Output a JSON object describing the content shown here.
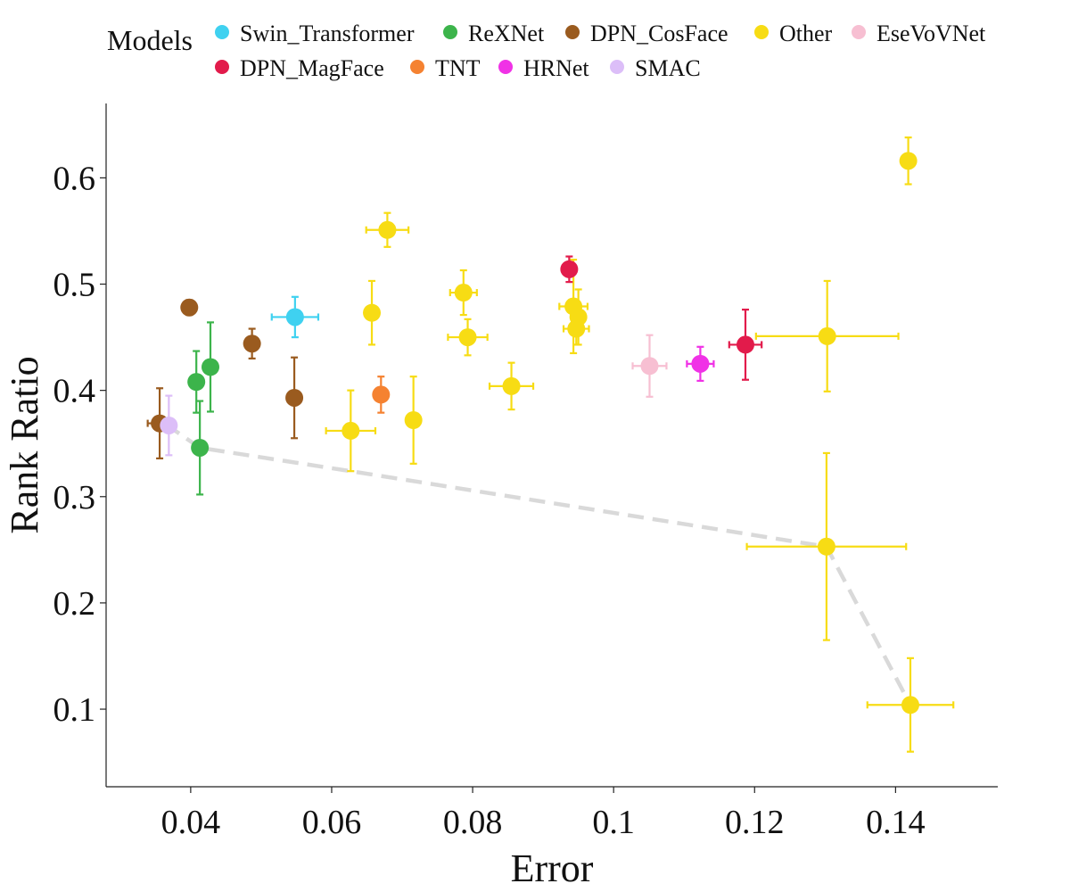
{
  "chart_data": {
    "type": "scatter",
    "xlabel": "Error",
    "ylabel": "Rank Ratio",
    "xlim": [
      0.028,
      0.1545
    ],
    "ylim": [
      0.027,
      0.67
    ],
    "x_ticks": [
      0.04,
      0.06,
      0.08,
      0.1,
      0.12,
      0.14
    ],
    "x_tick_labels": [
      "0.04",
      "0.06",
      "0.08",
      "0.1",
      "0.12",
      "0.14"
    ],
    "y_ticks": [
      0.1,
      0.2,
      0.3,
      0.4,
      0.5,
      0.6
    ],
    "y_tick_labels": [
      "0.1",
      "0.2",
      "0.3",
      "0.4",
      "0.5",
      "0.6"
    ],
    "grid": false,
    "legend": {
      "title": "Models",
      "placement": "top",
      "rows": [
        [
          "Swin_Transformer",
          "ReXNet",
          "DPN_CosFace",
          "Other",
          "EseVoVNet"
        ],
        [
          "DPN_MagFace",
          "TNT",
          "HRNet",
          "SMAC"
        ]
      ]
    },
    "frontier": {
      "style": "dashed",
      "color": "#d9d9d9",
      "points": [
        [
          0.0365,
          0.368
        ],
        [
          0.0413,
          0.346
        ],
        [
          0.0627,
          0.324
        ],
        [
          0.1302,
          0.253
        ],
        [
          0.1421,
          0.104
        ]
      ]
    },
    "series": [
      {
        "name": "Swin_Transformer",
        "color": "#3fd1f0",
        "points": [
          {
            "x": 0.0548,
            "y": 0.469,
            "xerr": 0.0033,
            "yerr": 0.019
          }
        ]
      },
      {
        "name": "ReXNet",
        "color": "#3cb44b",
        "points": [
          {
            "x": 0.0408,
            "y": 0.408,
            "xerr": 0.0003,
            "yerr": 0.029
          },
          {
            "x": 0.0428,
            "y": 0.422,
            "xerr": 0.0003,
            "yerr": 0.042
          },
          {
            "x": 0.0413,
            "y": 0.346,
            "xerr": 0.0003,
            "yerr": 0.044
          }
        ]
      },
      {
        "name": "DPN_CosFace",
        "color": "#9a5b1f",
        "points": [
          {
            "x": 0.0398,
            "y": 0.478,
            "xerr": 0.0003,
            "yerr": 0.007
          },
          {
            "x": 0.0487,
            "y": 0.444,
            "xerr": 0.0003,
            "yerr": 0.014
          },
          {
            "x": 0.0547,
            "y": 0.393,
            "xerr": 0.0003,
            "yerr": 0.038
          },
          {
            "x": 0.0356,
            "y": 0.369,
            "xerr": 0.0017,
            "yerr": 0.033
          }
        ]
      },
      {
        "name": "Other",
        "color": "#f7dc14",
        "points": [
          {
            "x": 0.1418,
            "y": 0.616,
            "xerr": 0.0003,
            "yerr": 0.022
          },
          {
            "x": 0.0679,
            "y": 0.551,
            "xerr": 0.003,
            "yerr": 0.016
          },
          {
            "x": 0.0787,
            "y": 0.492,
            "xerr": 0.0019,
            "yerr": 0.021
          },
          {
            "x": 0.0657,
            "y": 0.473,
            "xerr": 0.0003,
            "yerr": 0.03
          },
          {
            "x": 0.0943,
            "y": 0.479,
            "xerr": 0.002,
            "yerr": 0.044
          },
          {
            "x": 0.095,
            "y": 0.469,
            "xerr": 0.0003,
            "yerr": 0.026
          },
          {
            "x": 0.0947,
            "y": 0.458,
            "xerr": 0.0018,
            "yerr": 0.015
          },
          {
            "x": 0.0793,
            "y": 0.45,
            "xerr": 0.0028,
            "yerr": 0.017
          },
          {
            "x": 0.0855,
            "y": 0.404,
            "xerr": 0.0031,
            "yerr": 0.022
          },
          {
            "x": 0.1303,
            "y": 0.451,
            "xerr": 0.0101,
            "yerr": 0.052
          },
          {
            "x": 0.0627,
            "y": 0.362,
            "xerr": 0.0035,
            "yerr": 0.038
          },
          {
            "x": 0.0716,
            "y": 0.372,
            "xerr": 0.0003,
            "yerr": 0.041
          },
          {
            "x": 0.1302,
            "y": 0.253,
            "xerr": 0.0113,
            "yerr": 0.088
          },
          {
            "x": 0.1421,
            "y": 0.104,
            "xerr": 0.0061,
            "yerr": 0.044
          }
        ]
      },
      {
        "name": "EseVoVNet",
        "color": "#f7bfd2",
        "points": [
          {
            "x": 0.1051,
            "y": 0.423,
            "xerr": 0.0024,
            "yerr": 0.029
          }
        ]
      },
      {
        "name": "DPN_MagFace",
        "color": "#e21b4b",
        "points": [
          {
            "x": 0.0937,
            "y": 0.514,
            "xerr": 0.0003,
            "yerr": 0.012
          },
          {
            "x": 0.1187,
            "y": 0.443,
            "xerr": 0.0023,
            "yerr": 0.033
          }
        ]
      },
      {
        "name": "TNT",
        "color": "#f58231",
        "points": [
          {
            "x": 0.067,
            "y": 0.396,
            "xerr": 0.0003,
            "yerr": 0.017
          }
        ]
      },
      {
        "name": "HRNet",
        "color": "#f032e6",
        "points": [
          {
            "x": 0.1123,
            "y": 0.425,
            "xerr": 0.0019,
            "yerr": 0.016
          }
        ]
      },
      {
        "name": "SMAC",
        "color": "#dcbef8",
        "points": [
          {
            "x": 0.0369,
            "y": 0.367,
            "xerr": 0.0003,
            "yerr": 0.028
          }
        ]
      }
    ]
  }
}
